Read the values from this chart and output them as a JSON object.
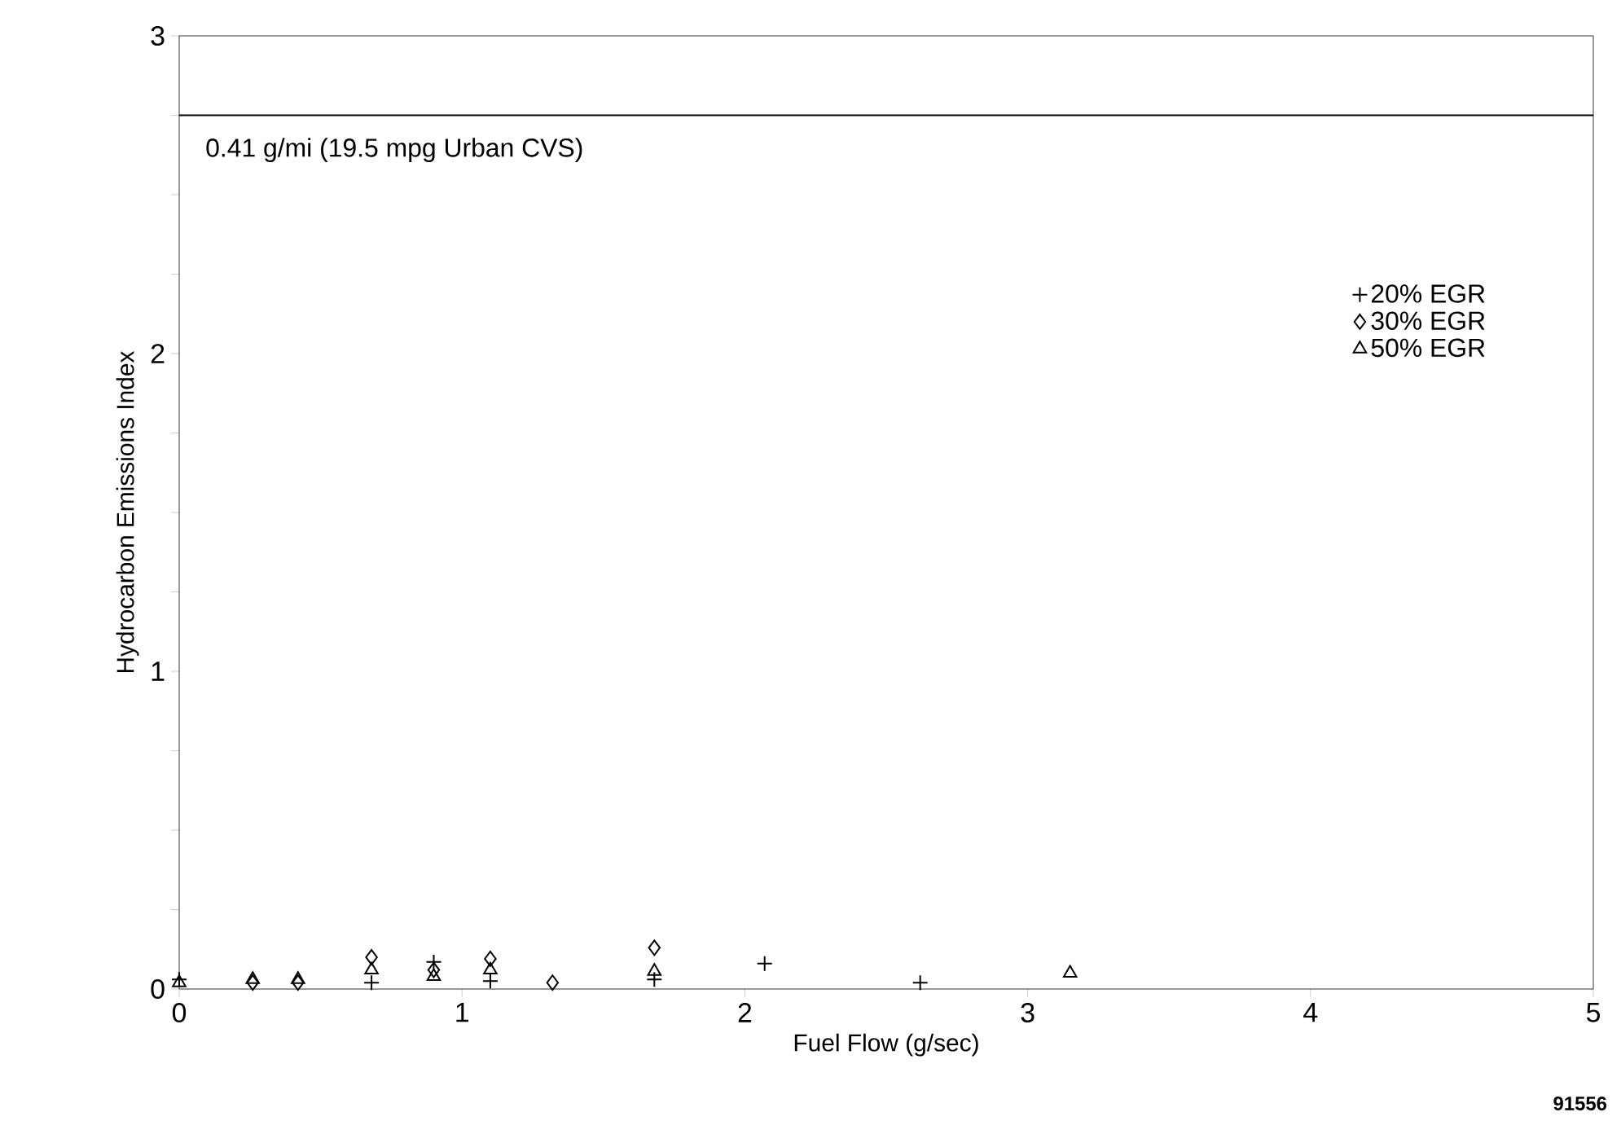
{
  "chart_data": {
    "type": "scatter",
    "xlabel": "Fuel Flow (g/sec)",
    "ylabel": "Hydrocarbon Emissions Index",
    "xlim": [
      0,
      5
    ],
    "ylim": [
      0,
      3
    ],
    "xticks": [
      0,
      1,
      2,
      3,
      4,
      5
    ],
    "yticks": [
      0,
      {
        "value": 0.25,
        "label": null
      },
      {
        "value": 0.5,
        "label": null
      },
      {
        "value": 0.75,
        "label": null
      },
      1,
      {
        "value": 1.25,
        "label": null
      },
      {
        "value": 1.5,
        "label": null
      },
      {
        "value": 1.75,
        "label": null
      },
      2,
      {
        "value": 2.25,
        "label": null
      },
      {
        "value": 2.5,
        "label": null
      },
      {
        "value": 2.75,
        "label": null
      },
      3
    ],
    "legend": "right",
    "grid": false,
    "series": [
      {
        "name": "20% EGR",
        "color": "#000000",
        "marker": "cross",
        "x": [
          0,
          0.68,
          0.9,
          1.1,
          1.68,
          2.07,
          2.62
        ],
        "values": [
          0.03,
          0.02,
          0.085,
          0.025,
          0.03,
          0.08,
          0.02
        ]
      },
      {
        "name": "30% EGR",
        "color": "#000000",
        "marker": "diamond",
        "x": [
          0.26,
          0.42,
          0.68,
          0.9,
          1.1,
          1.32,
          1.68
        ],
        "values": [
          0.02,
          0.02,
          0.1,
          0.06,
          0.095,
          0.02,
          0.13
        ]
      },
      {
        "name": "50% EGR",
        "color": "#000000",
        "marker": "triangle",
        "x": [
          0,
          0.26,
          0.42,
          0.68,
          0.9,
          1.1,
          1.68,
          3.15
        ],
        "values": [
          0.02,
          0.03,
          0.03,
          0.06,
          0.04,
          0.06,
          0.056,
          0.05
        ]
      }
    ],
    "ref_lines": [
      {
        "axis": "y",
        "value": 2.75,
        "label": "0.41 g/mi (19.5 mpg Urban CVS)",
        "color": "#000000",
        "line_style": "solid"
      }
    ],
    "annotations": [
      "91556"
    ]
  }
}
